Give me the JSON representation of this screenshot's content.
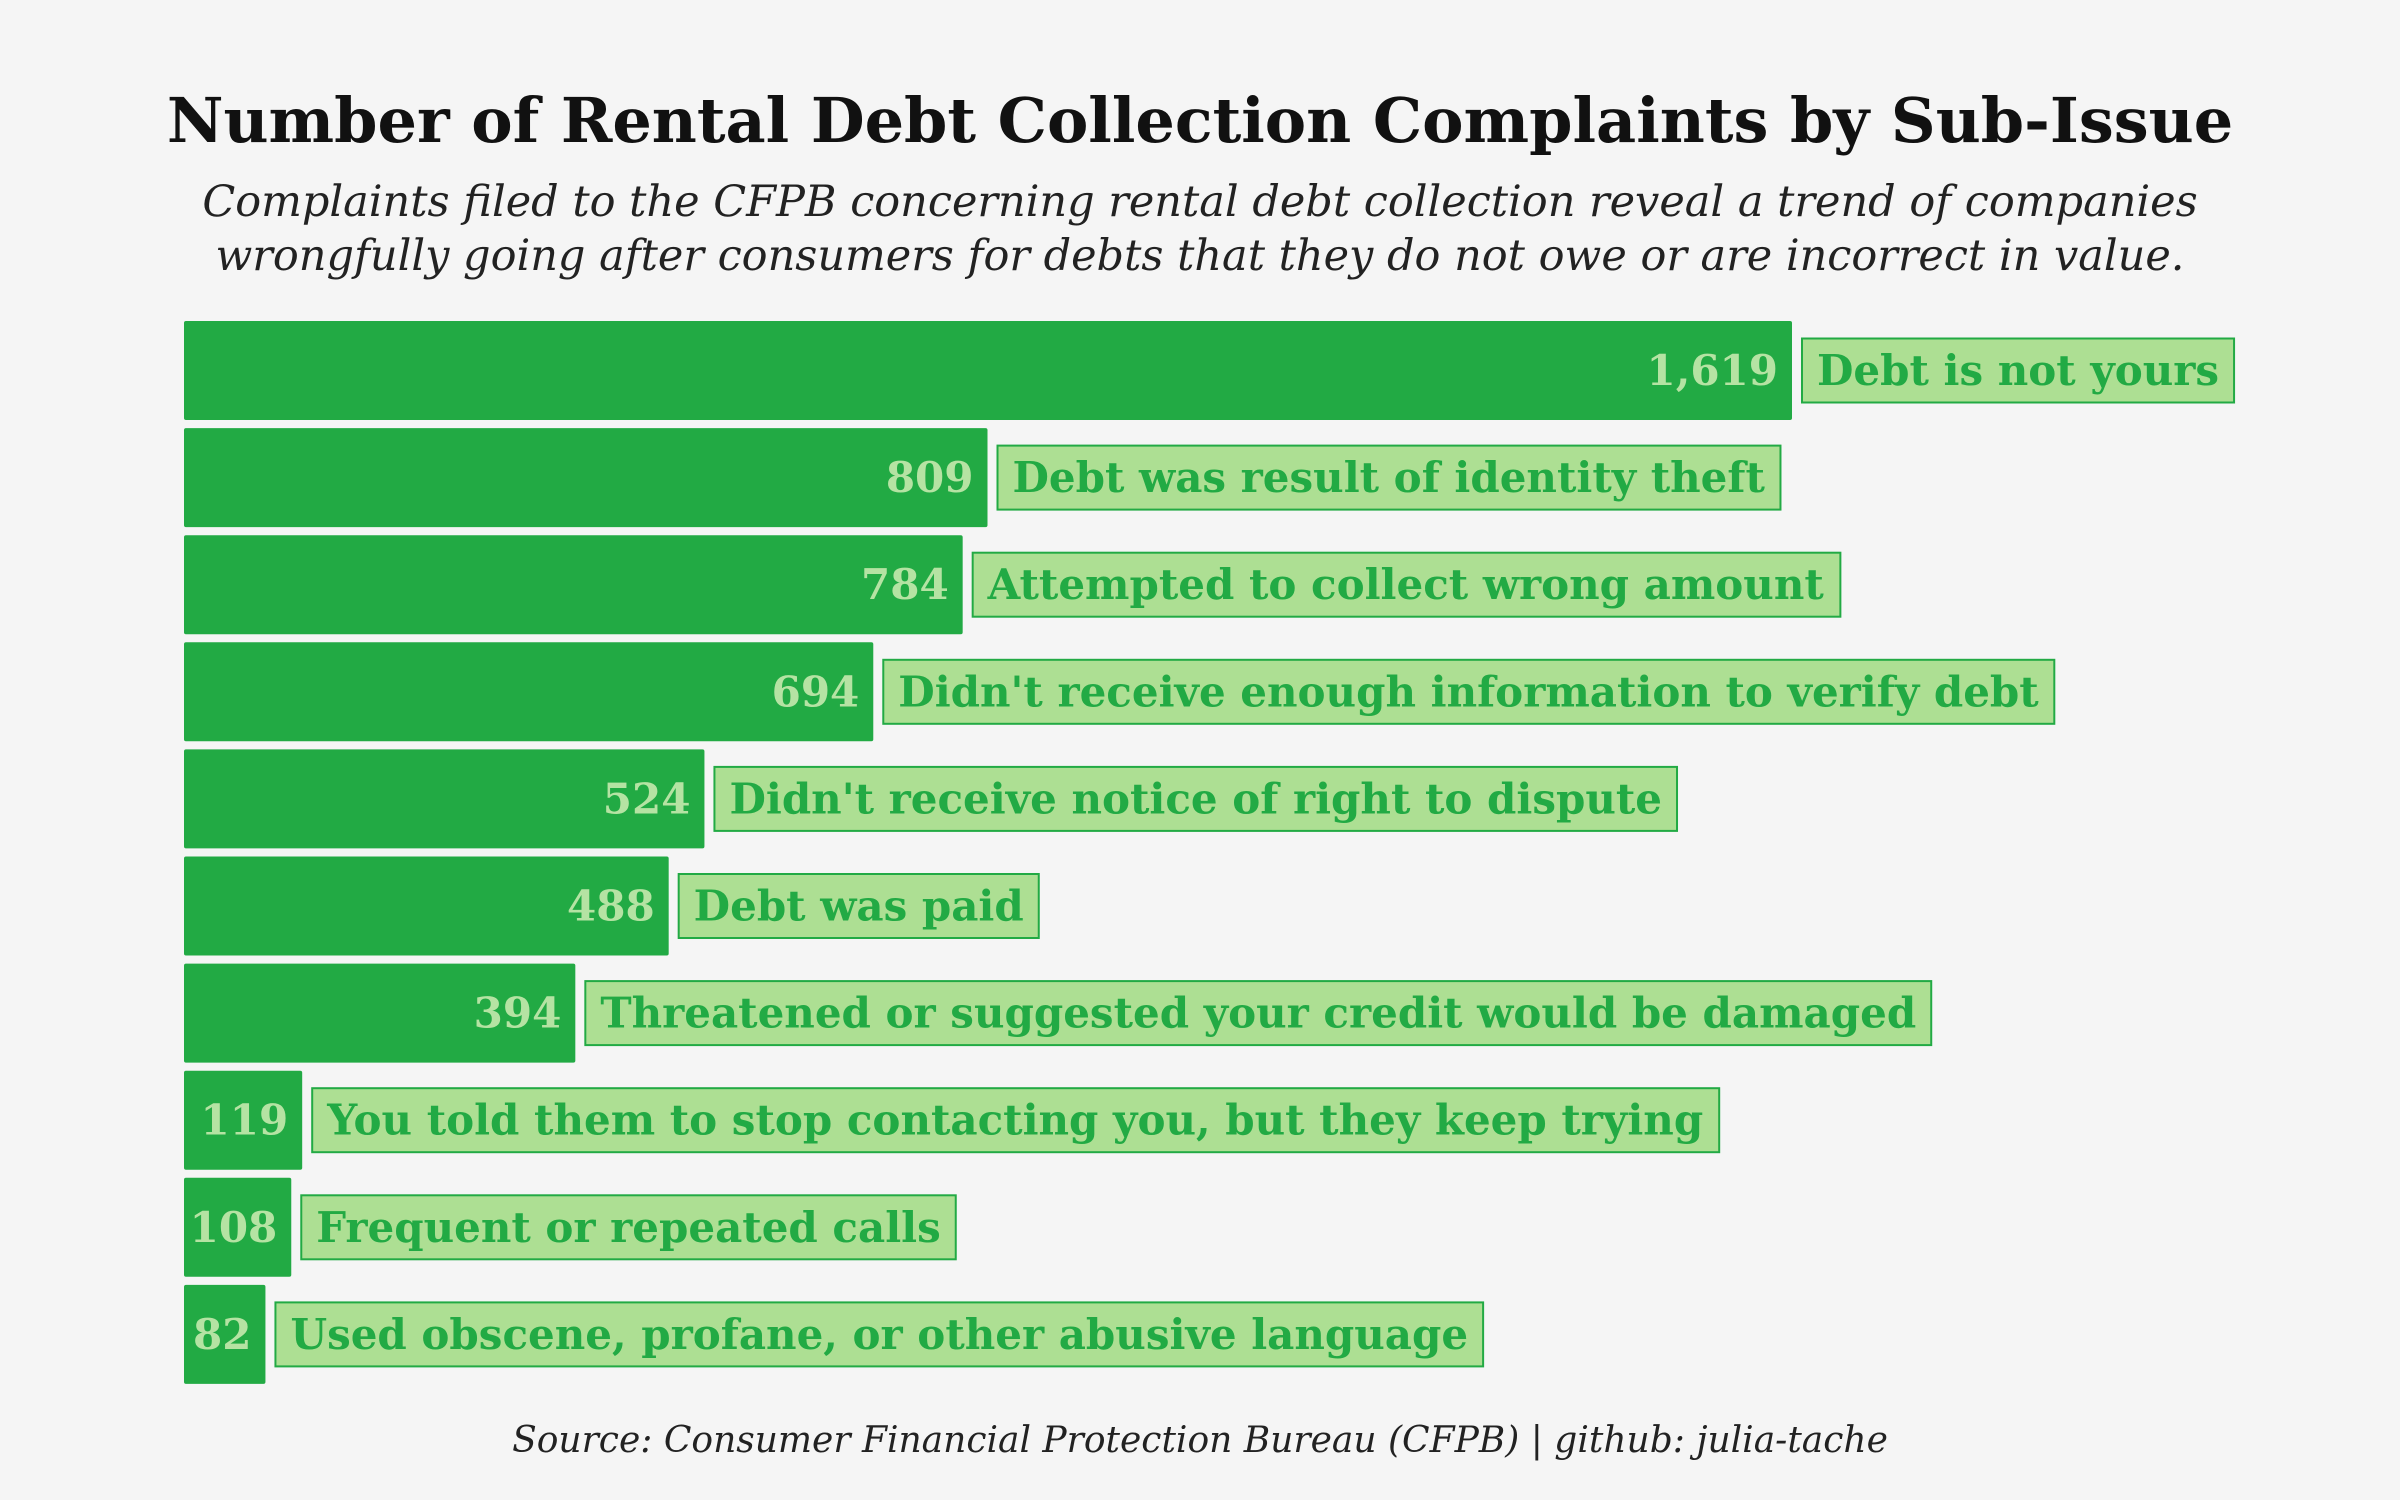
{
  "chart_data": {
    "type": "bar",
    "orientation": "horizontal",
    "title": "Number of Rental Debt Collection Complaints by Sub-Issue",
    "subtitle": [
      "Complaints filed to the CFPB concerning rental debt collection reveal a trend of companies",
      "wrongfully going after consumers for debts that they do not owe or are incorrect in value."
    ],
    "categories": [
      "Debt is not yours",
      "Debt was result of identity theft",
      "Attempted to collect wrong amount",
      "Didn't receive enough information to verify debt",
      "Didn't receive notice of right to dispute",
      "Debt was paid",
      "Threatened or suggested your credit would be damaged",
      "You told them to stop contacting you, but they keep trying",
      "Frequent or repeated calls",
      "Used obscene, profane, or other abusive language"
    ],
    "values": [
      1619,
      809,
      784,
      694,
      524,
      488,
      394,
      119,
      108,
      82
    ],
    "value_labels": [
      "1,619",
      "809",
      "784",
      "694",
      "524",
      "488",
      "394",
      "119",
      "108",
      "82"
    ],
    "xlim": [
      0,
      1619
    ],
    "grid": false,
    "legend": "none",
    "colors": {
      "bar": "#22aa44",
      "value_text": "#b5e3a3",
      "label_fill": "#addf93",
      "label_border": "#22aa44",
      "label_text": "#22aa44"
    },
    "source": "Source: Consumer Financial Protection Bureau (CFPB) | github: julia-tache"
  }
}
